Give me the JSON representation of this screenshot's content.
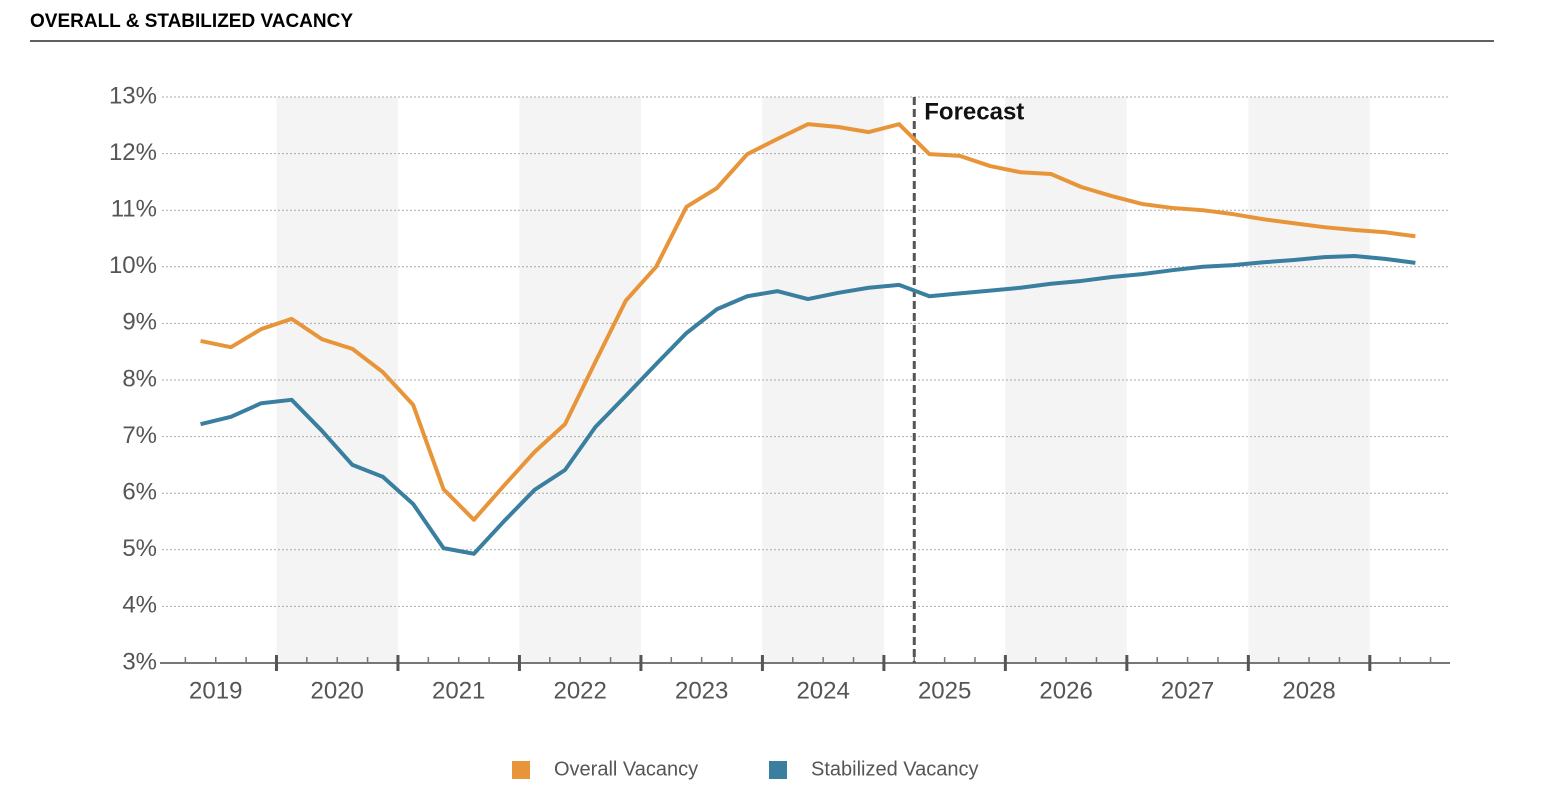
{
  "chart_data": {
    "type": "line",
    "title": "OVERALL & STABILIZED VACANCY",
    "annotation": "Forecast",
    "forecast_x": 2025.25,
    "xlim": [
      2019,
      2029.66
    ],
    "ylim": [
      3,
      13
    ],
    "grid": true,
    "xticks": [
      {
        "value": 2019.5,
        "label": "2019"
      },
      {
        "value": 2020.5,
        "label": "2020"
      },
      {
        "value": 2021.5,
        "label": "2021"
      },
      {
        "value": 2022.5,
        "label": "2022"
      },
      {
        "value": 2023.5,
        "label": "2023"
      },
      {
        "value": 2024.5,
        "label": "2024"
      },
      {
        "value": 2025.5,
        "label": "2025"
      },
      {
        "value": 2026.5,
        "label": "2026"
      },
      {
        "value": 2027.5,
        "label": "2027"
      },
      {
        "value": 2028.5,
        "label": "2028"
      }
    ],
    "yticks": [
      {
        "value": 3,
        "label": "3%"
      },
      {
        "value": 4,
        "label": "4%"
      },
      {
        "value": 5,
        "label": "5%"
      },
      {
        "value": 6,
        "label": "6%"
      },
      {
        "value": 7,
        "label": "7%"
      },
      {
        "value": 8,
        "label": "8%"
      },
      {
        "value": 9,
        "label": "9%"
      },
      {
        "value": 10,
        "label": "10%"
      },
      {
        "value": 11,
        "label": "11%"
      },
      {
        "value": 12,
        "label": "12%"
      },
      {
        "value": 13,
        "label": "13%"
      }
    ],
    "x": [
      2019.375,
      2019.625,
      2019.875,
      2020.125,
      2020.375,
      2020.625,
      2020.875,
      2021.125,
      2021.375,
      2021.625,
      2021.875,
      2022.125,
      2022.375,
      2022.625,
      2022.875,
      2023.125,
      2023.375,
      2023.625,
      2023.875,
      2024.125,
      2024.375,
      2024.625,
      2024.875,
      2025.125,
      2025.375,
      2025.625,
      2025.875,
      2026.125,
      2026.375,
      2026.625,
      2026.875,
      2027.125,
      2027.375,
      2027.625,
      2027.875,
      2028.125,
      2028.375,
      2028.625,
      2028.875,
      2029.125,
      2029.375
    ],
    "series": [
      {
        "name": "Overall Vacancy",
        "color": "#e8953a",
        "values": [
          8.69,
          8.58,
          8.9,
          9.08,
          8.72,
          8.55,
          8.14,
          7.56,
          6.07,
          5.53,
          6.14,
          6.73,
          7.22,
          8.32,
          9.4,
          10.0,
          11.06,
          11.39,
          11.99,
          12.26,
          12.52,
          12.47,
          12.38,
          12.52,
          11.99,
          11.96,
          11.78,
          11.67,
          11.64,
          11.41,
          11.25,
          11.11,
          11.04,
          11.0,
          10.93,
          10.84,
          10.77,
          10.7,
          10.65,
          10.61,
          10.54
        ]
      },
      {
        "name": "Stabilized Vacancy",
        "color": "#3a7fa0",
        "values": [
          7.22,
          7.35,
          7.59,
          7.65,
          7.1,
          6.5,
          6.29,
          5.81,
          5.03,
          4.93,
          5.51,
          6.06,
          6.41,
          7.17,
          7.72,
          8.28,
          8.83,
          9.25,
          9.48,
          9.57,
          9.43,
          9.54,
          9.63,
          9.68,
          9.48,
          9.53,
          9.58,
          9.63,
          9.7,
          9.75,
          9.82,
          9.87,
          9.94,
          10.0,
          10.03,
          10.08,
          10.12,
          10.17,
          10.19,
          10.14,
          10.07
        ]
      }
    ]
  }
}
